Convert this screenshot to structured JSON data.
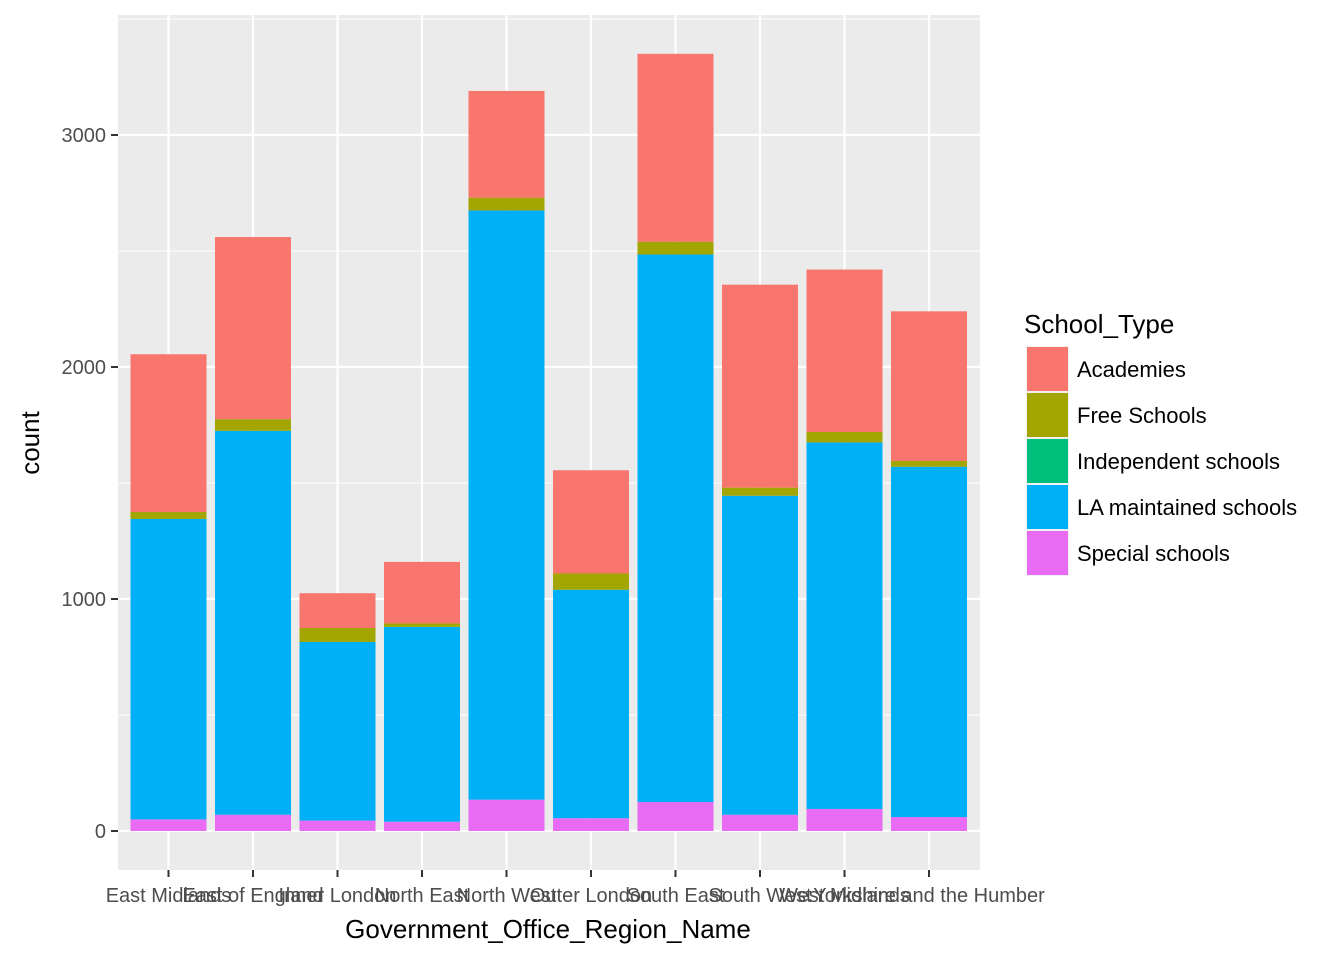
{
  "chart_data": {
    "type": "bar",
    "stacked": true,
    "title": "",
    "xlabel": "Government_Office_Region_Name",
    "ylabel": "count",
    "ylim": [
      0,
      3450
    ],
    "yticks": [
      0,
      1000,
      2000,
      3000
    ],
    "ytick_labels": [
      "0",
      "1000",
      "2000",
      "3000"
    ],
    "grid": true,
    "background": "#ebebeb",
    "categories": [
      "East Midlands",
      "East of England",
      "Inner London",
      "North East",
      "North West",
      "Outer London",
      "South East",
      "South West",
      "West Midlands",
      "Yorkshire and the Humber"
    ],
    "legend": {
      "title": "School_Type",
      "position": "right"
    },
    "series": [
      {
        "name": "Academies",
        "color": "#F8766D",
        "values": [
          680,
          785,
          150,
          265,
          460,
          445,
          810,
          875,
          700,
          645
        ]
      },
      {
        "name": "Free Schools",
        "color": "#A3A500",
        "values": [
          30,
          50,
          60,
          15,
          55,
          70,
          55,
          35,
          45,
          25
        ]
      },
      {
        "name": "Independent schools",
        "color": "#00BF7D",
        "values": [
          0,
          0,
          0,
          0,
          0,
          0,
          0,
          0,
          0,
          0
        ]
      },
      {
        "name": "LA maintained schools",
        "color": "#00B0F6",
        "values": [
          1295,
          1655,
          770,
          840,
          2540,
          985,
          2360,
          1375,
          1580,
          1510
        ]
      },
      {
        "name": "Special schools",
        "color": "#E76BF3",
        "values": [
          50,
          70,
          45,
          40,
          135,
          55,
          125,
          70,
          95,
          60
        ]
      }
    ]
  }
}
